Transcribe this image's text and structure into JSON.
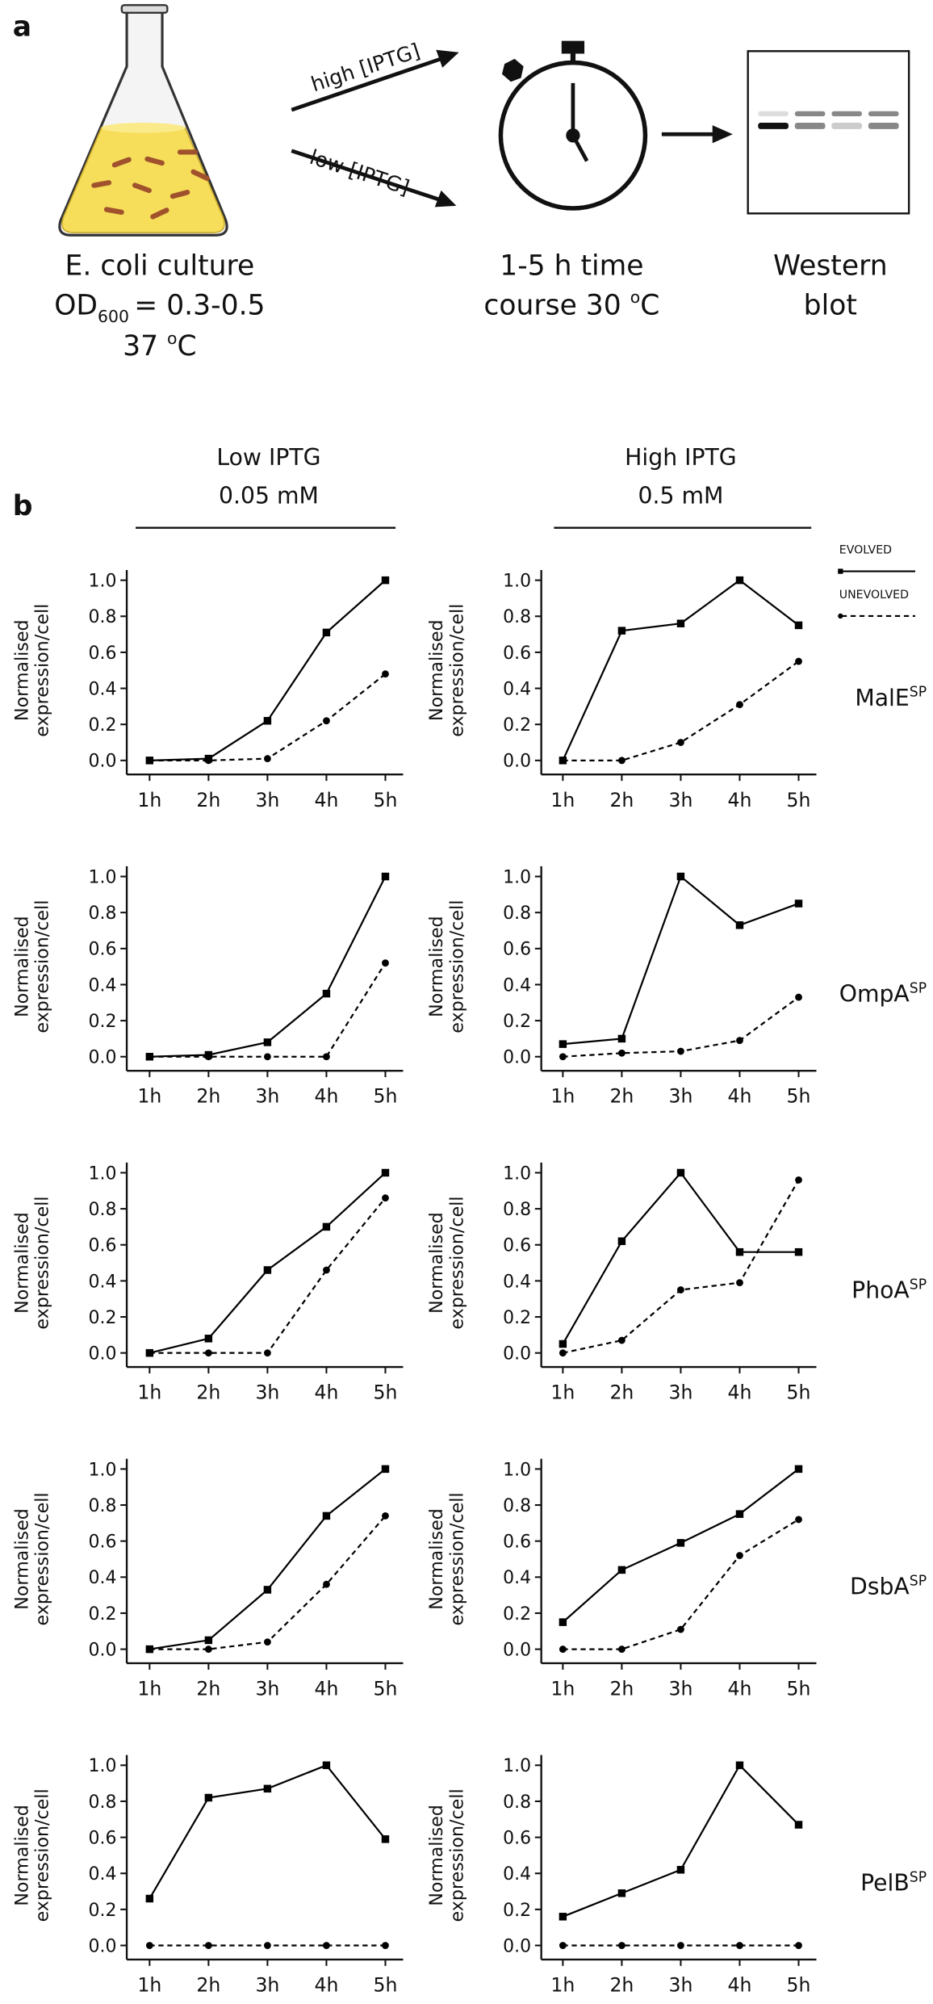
{
  "panel_a": {
    "label": "a",
    "arrow_high": "high [IPTG]",
    "arrow_low": "low [IPTG]",
    "culture": {
      "line1": "E. coli culture",
      "od": "OD",
      "od_sub": "600",
      "od_value": "= 0.3-0.5",
      "temp": "37 ",
      "temp_sup": "o",
      "temp_unit": "C"
    },
    "timecourse": {
      "line1": "1-5 h time",
      "line2": "course 30 ",
      "sup": "o",
      "unit": "C"
    },
    "western": {
      "line1": "Western",
      "line2": "blot"
    }
  },
  "panel_b": {
    "label": "b",
    "low_header": "Low IPTG",
    "low_conc": "0.05 mM",
    "high_header": "High IPTG",
    "high_conc": "0.5 mM"
  },
  "chart_data": [
    {
      "type": "line",
      "categories": [
        "1h",
        "2h",
        "3h",
        "4h",
        "5h"
      ],
      "ylabel": [
        "Normalised",
        "expression/cell"
      ],
      "ylim": [
        0,
        1
      ],
      "yticks": [
        {
          "value": 0,
          "label": "0.0"
        },
        0.2,
        0.4,
        0.6,
        0.8,
        {
          "value": 1,
          "label": "1.0"
        }
      ],
      "series": [
        {
          "name": "EVOLVED",
          "color": "#000000",
          "style": "solid",
          "marker": "square",
          "values": [
            0,
            0.01,
            0.22,
            0.71,
            1.0
          ]
        },
        {
          "name": "UNEVOLVED",
          "color": "#000000",
          "style": "dashed",
          "marker": "circle",
          "values": [
            0,
            0,
            0.01,
            0.22,
            0.48
          ]
        }
      ]
    },
    {
      "type": "line",
      "categories": [
        "1h",
        "2h",
        "3h",
        "4h",
        "5h"
      ],
      "ylabel": [
        "Normalised",
        "expression/cell"
      ],
      "ylim": [
        0,
        1
      ],
      "protein": "MalE",
      "protein_sup": "SP",
      "yticks": [
        {
          "value": 0,
          "label": "0.0"
        },
        0.2,
        0.4,
        0.6,
        0.8,
        {
          "value": 1,
          "label": "1.0"
        }
      ],
      "series": [
        {
          "name": "EVOLVED",
          "color": "#000000",
          "style": "solid",
          "marker": "square",
          "values": [
            0,
            0.72,
            0.76,
            1.0,
            0.75
          ]
        },
        {
          "name": "UNEVOLVED",
          "color": "#000000",
          "style": "dashed",
          "marker": "circle",
          "values": [
            0,
            0,
            0.1,
            0.31,
            0.55
          ]
        }
      ]
    },
    {
      "type": "line",
      "categories": [
        "1h",
        "2h",
        "3h",
        "4h",
        "5h"
      ],
      "ylabel": [
        "Normalised",
        "expression/cell"
      ],
      "ylim": [
        0,
        1
      ],
      "yticks": [
        {
          "value": 0,
          "label": "0.0"
        },
        0.2,
        0.4,
        0.6,
        0.8,
        {
          "value": 1,
          "label": "1.0"
        }
      ],
      "series": [
        {
          "name": "EVOLVED",
          "color": "#000000",
          "style": "solid",
          "marker": "square",
          "values": [
            0,
            0.01,
            0.08,
            0.35,
            1.0
          ]
        },
        {
          "name": "UNEVOLVED",
          "color": "#000000",
          "style": "dashed",
          "marker": "circle",
          "values": [
            0,
            0,
            0,
            0,
            0.52
          ]
        }
      ]
    },
    {
      "type": "line",
      "categories": [
        "1h",
        "2h",
        "3h",
        "4h",
        "5h"
      ],
      "ylabel": [
        "Normalised",
        "expression/cell"
      ],
      "ylim": [
        0,
        1
      ],
      "protein": "OmpA",
      "protein_sup": "SP",
      "yticks": [
        {
          "value": 0,
          "label": "0.0"
        },
        0.2,
        0.4,
        0.6,
        0.8,
        {
          "value": 1,
          "label": "1.0"
        }
      ],
      "series": [
        {
          "name": "EVOLVED",
          "color": "#000000",
          "style": "solid",
          "marker": "square",
          "values": [
            0.07,
            0.1,
            1.0,
            0.73,
            0.85
          ]
        },
        {
          "name": "UNEVOLVED",
          "color": "#000000",
          "style": "dashed",
          "marker": "circle",
          "values": [
            0,
            0.02,
            0.03,
            0.09,
            0.33
          ]
        }
      ]
    },
    {
      "type": "line",
      "categories": [
        "1h",
        "2h",
        "3h",
        "4h",
        "5h"
      ],
      "ylabel": [
        "Normalised",
        "expression/cell"
      ],
      "ylim": [
        0,
        1
      ],
      "yticks": [
        {
          "value": 0,
          "label": "0.0"
        },
        0.2,
        0.4,
        0.6,
        0.8,
        {
          "value": 1,
          "label": "1.0"
        }
      ],
      "series": [
        {
          "name": "EVOLVED",
          "color": "#000000",
          "style": "solid",
          "marker": "square",
          "values": [
            0,
            0.08,
            0.46,
            0.7,
            1.0
          ]
        },
        {
          "name": "UNEVOLVED",
          "color": "#000000",
          "style": "dashed",
          "marker": "circle",
          "values": [
            0,
            0,
            0,
            0.46,
            0.86
          ]
        }
      ]
    },
    {
      "type": "line",
      "categories": [
        "1h",
        "2h",
        "3h",
        "4h",
        "5h"
      ],
      "ylabel": [
        "Normalised",
        "expression/cell"
      ],
      "ylim": [
        0,
        1
      ],
      "protein": "PhoA",
      "protein_sup": "SP",
      "yticks": [
        {
          "value": 0,
          "label": "0.0"
        },
        0.2,
        0.4,
        0.6,
        0.8,
        {
          "value": 1,
          "label": "1.0"
        }
      ],
      "series": [
        {
          "name": "EVOLVED",
          "color": "#000000",
          "style": "solid",
          "marker": "square",
          "values": [
            0.05,
            0.62,
            1.0,
            0.56,
            0.56
          ]
        },
        {
          "name": "UNEVOLVED",
          "color": "#000000",
          "style": "dashed",
          "marker": "circle",
          "values": [
            0,
            0.07,
            0.35,
            0.39,
            0.96
          ]
        }
      ]
    },
    {
      "type": "line",
      "categories": [
        "1h",
        "2h",
        "3h",
        "4h",
        "5h"
      ],
      "ylabel": [
        "Normalised",
        "expression/cell"
      ],
      "ylim": [
        0,
        1
      ],
      "yticks": [
        {
          "value": 0,
          "label": "0.0"
        },
        0.2,
        0.4,
        0.6,
        0.8,
        {
          "value": 1,
          "label": "1.0"
        }
      ],
      "series": [
        {
          "name": "EVOLVED",
          "color": "#000000",
          "style": "solid",
          "marker": "square",
          "values": [
            0,
            0.05,
            0.33,
            0.74,
            1.0
          ]
        },
        {
          "name": "UNEVOLVED",
          "color": "#000000",
          "style": "dashed",
          "marker": "circle",
          "values": [
            0,
            0,
            0.04,
            0.36,
            0.74
          ]
        }
      ]
    },
    {
      "type": "line",
      "categories": [
        "1h",
        "2h",
        "3h",
        "4h",
        "5h"
      ],
      "ylabel": [
        "Normalised",
        "expression/cell"
      ],
      "ylim": [
        0,
        1
      ],
      "protein": "DsbA",
      "protein_sup": "SP",
      "yticks": [
        {
          "value": 0,
          "label": "0.0"
        },
        0.2,
        0.4,
        0.6,
        0.8,
        {
          "value": 1,
          "label": "1.0"
        }
      ],
      "series": [
        {
          "name": "EVOLVED",
          "color": "#000000",
          "style": "solid",
          "marker": "square",
          "values": [
            0.15,
            0.44,
            0.59,
            0.75,
            1.0
          ]
        },
        {
          "name": "UNEVOLVED",
          "color": "#000000",
          "style": "dashed",
          "marker": "circle",
          "values": [
            0,
            0,
            0.11,
            0.52,
            0.72
          ]
        }
      ]
    },
    {
      "type": "line",
      "categories": [
        "1h",
        "2h",
        "3h",
        "4h",
        "5h"
      ],
      "ylabel": [
        "Normalised",
        "expression/cell"
      ],
      "ylim": [
        0,
        1
      ],
      "yticks": [
        {
          "value": 0,
          "label": "0.0"
        },
        0.2,
        0.4,
        0.6,
        0.8,
        {
          "value": 1,
          "label": "1.0"
        }
      ],
      "series": [
        {
          "name": "EVOLVED",
          "color": "#000000",
          "style": "solid",
          "marker": "square",
          "values": [
            0.26,
            0.82,
            0.87,
            1.0,
            0.59
          ]
        },
        {
          "name": "UNEVOLVED",
          "color": "#000000",
          "style": "dashed",
          "marker": "circle",
          "values": [
            0,
            0,
            0,
            0,
            0
          ]
        }
      ]
    },
    {
      "type": "line",
      "categories": [
        "1h",
        "2h",
        "3h",
        "4h",
        "5h"
      ],
      "ylabel": [
        "Normalised",
        "expression/cell"
      ],
      "ylim": [
        0,
        1
      ],
      "protein": "PelB",
      "protein_sup": "SP",
      "yticks": [
        {
          "value": 0,
          "label": "0.0"
        },
        0.2,
        0.4,
        0.6,
        0.8,
        {
          "value": 1,
          "label": "1.0"
        }
      ],
      "series": [
        {
          "name": "EVOLVED",
          "color": "#000000",
          "style": "solid",
          "marker": "square",
          "values": [
            0.16,
            0.29,
            0.42,
            1.0,
            0.67
          ]
        },
        {
          "name": "UNEVOLVED",
          "color": "#000000",
          "style": "dashed",
          "marker": "circle",
          "values": [
            0,
            0,
            0,
            0,
            0
          ]
        }
      ]
    }
  ]
}
